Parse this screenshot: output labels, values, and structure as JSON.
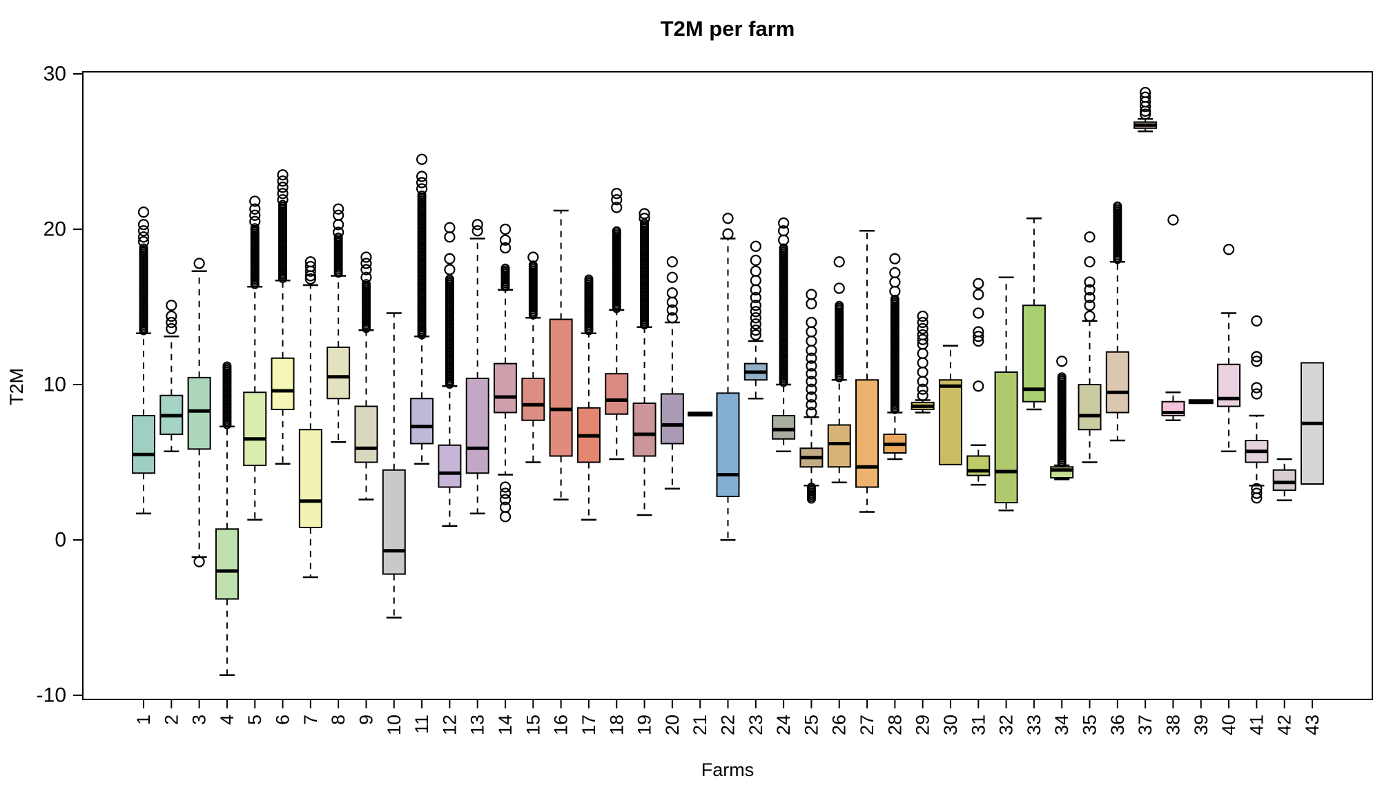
{
  "chart_data": {
    "type": "boxplot",
    "title": "T2M per farm",
    "xlabel": "Farms",
    "ylabel": "T2M",
    "ylim": [
      -10,
      30
    ],
    "y_ticks": [
      30,
      20,
      10,
      0,
      -10
    ],
    "grid": false,
    "legend": "none",
    "farms": [
      {
        "label": "1",
        "color": "#9FCFC3",
        "whisker_low": 1.7,
        "q1": 4.3,
        "median": 5.5,
        "q3": 8.0,
        "whisker_high": 13.3,
        "out_high_dense": [
          13.4,
          18.8
        ],
        "out_high": [
          19.2,
          19.5,
          19.9,
          20.3,
          21.1
        ],
        "out_low_dense": null,
        "out_low": []
      },
      {
        "label": "2",
        "color": "#A5D3C5",
        "whisker_low": 5.7,
        "q1": 6.8,
        "median": 8.0,
        "q3": 9.3,
        "whisker_high": 13.1,
        "out_high_dense": null,
        "out_high": [
          13.6,
          14.0,
          14.4,
          15.1
        ],
        "out_low_dense": null,
        "out_low": []
      },
      {
        "label": "3",
        "color": "#ACD6BC",
        "whisker_low": -1.1,
        "q1": 5.85,
        "median": 8.3,
        "q3": 10.45,
        "whisker_high": 17.3,
        "out_high_dense": null,
        "out_high": [
          17.8
        ],
        "out_low_dense": null,
        "out_low": [
          -1.4
        ]
      },
      {
        "label": "4",
        "color": "#C0E1AE",
        "whisker_low": -8.7,
        "q1": -3.8,
        "median": -2.0,
        "q3": 0.7,
        "whisker_high": 7.3,
        "out_high_dense": [
          7.4,
          11.2
        ],
        "out_high": [],
        "out_low_dense": null,
        "out_low": []
      },
      {
        "label": "5",
        "color": "#DAEDAF",
        "whisker_low": 1.3,
        "q1": 4.8,
        "median": 6.5,
        "q3": 9.5,
        "whisker_high": 16.3,
        "out_high_dense": [
          16.4,
          20.1
        ],
        "out_high": [
          20.5,
          20.9,
          21.3,
          21.8
        ],
        "out_low_dense": null,
        "out_low": []
      },
      {
        "label": "6",
        "color": "#F5F7B6",
        "whisker_low": 4.9,
        "q1": 8.4,
        "median": 9.6,
        "q3": 11.7,
        "whisker_high": 16.7,
        "out_high_dense": [
          16.8,
          21.6
        ],
        "out_high": [
          21.9,
          22.3,
          22.7,
          23.1,
          23.5
        ],
        "out_low_dense": null,
        "out_low": []
      },
      {
        "label": "7",
        "color": "#F1F2B3",
        "whisker_low": -2.4,
        "q1": 0.8,
        "median": 2.5,
        "q3": 7.1,
        "whisker_high": 16.4,
        "out_high_dense": null,
        "out_high": [
          16.8,
          17.0,
          17.3,
          17.6,
          17.9
        ],
        "out_low_dense": null,
        "out_low": []
      },
      {
        "label": "8",
        "color": "#E4E2BE",
        "whisker_low": 6.3,
        "q1": 9.1,
        "median": 10.5,
        "q3": 12.4,
        "whisker_high": 17.0,
        "out_high_dense": [
          17.1,
          19.5
        ],
        "out_high": [
          19.8,
          20.3,
          20.9,
          21.3
        ],
        "out_low_dense": null,
        "out_low": []
      },
      {
        "label": "9",
        "color": "#D9D8BE",
        "whisker_low": 2.6,
        "q1": 5.0,
        "median": 5.9,
        "q3": 8.6,
        "whisker_high": 13.5,
        "out_high_dense": [
          13.6,
          16.5
        ],
        "out_high": [
          16.9,
          17.4,
          17.8,
          18.2
        ],
        "out_low_dense": null,
        "out_low": []
      },
      {
        "label": "10",
        "color": "#C9C9C9",
        "whisker_low": -5.0,
        "q1": -2.2,
        "median": -0.7,
        "q3": 4.5,
        "whisker_high": 14.6,
        "out_high_dense": null,
        "out_high": [],
        "out_low_dense": null,
        "out_low": []
      },
      {
        "label": "11",
        "color": "#BDB9D6",
        "whisker_low": 4.9,
        "q1": 6.2,
        "median": 7.3,
        "q3": 9.1,
        "whisker_high": 13.1,
        "out_high_dense": [
          13.2,
          22.2
        ],
        "out_high": [
          22.6,
          23.0,
          23.4,
          24.5
        ],
        "out_low_dense": null,
        "out_low": []
      },
      {
        "label": "12",
        "color": "#C6B4D6",
        "whisker_low": 0.9,
        "q1": 3.4,
        "median": 4.3,
        "q3": 6.1,
        "whisker_high": 9.9,
        "out_high_dense": [
          10.0,
          16.8
        ],
        "out_high": [
          17.4,
          18.1,
          19.5,
          20.1
        ],
        "out_low_dense": null,
        "out_low": []
      },
      {
        "label": "13",
        "color": "#C3A8C5",
        "whisker_low": 1.7,
        "q1": 4.3,
        "median": 5.9,
        "q3": 10.4,
        "whisker_high": 19.4,
        "out_high_dense": null,
        "out_high": [
          19.9,
          20.3
        ],
        "out_low_dense": null,
        "out_low": []
      },
      {
        "label": "14",
        "color": "#CD9FAB",
        "whisker_low": 4.2,
        "q1": 8.2,
        "median": 9.2,
        "q3": 11.35,
        "whisker_high": 16.1,
        "out_high_dense": [
          16.2,
          17.5
        ],
        "out_high": [
          18.8,
          19.3,
          20.0
        ],
        "out_low_dense": null,
        "out_low": [
          1.5,
          2.1,
          2.6,
          3.0,
          3.4
        ]
      },
      {
        "label": "15",
        "color": "#DD8E83",
        "whisker_low": 5.0,
        "q1": 7.7,
        "median": 8.7,
        "q3": 10.4,
        "whisker_high": 14.3,
        "out_high_dense": [
          14.4,
          17.7
        ],
        "out_high": [
          18.2
        ],
        "out_low_dense": null,
        "out_low": []
      },
      {
        "label": "16",
        "color": "#E08B7B",
        "whisker_low": 2.6,
        "q1": 5.4,
        "median": 8.4,
        "q3": 14.2,
        "whisker_high": 21.2,
        "out_high_dense": null,
        "out_high": [],
        "out_low_dense": null,
        "out_low": []
      },
      {
        "label": "17",
        "color": "#E48570",
        "whisker_low": 1.3,
        "q1": 5.0,
        "median": 6.7,
        "q3": 8.5,
        "whisker_high": 13.3,
        "out_high_dense": [
          13.4,
          16.8
        ],
        "out_high": [],
        "out_low_dense": null,
        "out_low": []
      },
      {
        "label": "18",
        "color": "#D98B83",
        "whisker_low": 5.2,
        "q1": 8.1,
        "median": 9.0,
        "q3": 10.7,
        "whisker_high": 14.8,
        "out_high_dense": [
          14.9,
          19.9
        ],
        "out_high": [
          21.4,
          21.9,
          22.3
        ],
        "out_low_dense": null,
        "out_low": []
      },
      {
        "label": "19",
        "color": "#CB9599",
        "whisker_low": 1.6,
        "q1": 5.4,
        "median": 6.8,
        "q3": 8.8,
        "whisker_high": 13.7,
        "out_high_dense": [
          13.8,
          20.4
        ],
        "out_high": [
          20.7,
          21.0
        ],
        "out_low_dense": null,
        "out_low": []
      },
      {
        "label": "20",
        "color": "#A99BB3",
        "whisker_low": 3.3,
        "q1": 6.2,
        "median": 7.4,
        "q3": 9.4,
        "whisker_high": 14.0,
        "out_high_dense": null,
        "out_high": [
          14.3,
          14.8,
          15.3,
          15.9,
          16.9,
          17.9
        ],
        "out_low_dense": null,
        "out_low": []
      },
      {
        "label": "21",
        "color": "#C0C0C0",
        "whisker_low": 8.1,
        "q1": 8.1,
        "median": 8.1,
        "q3": 8.1,
        "whisker_high": 8.1,
        "out_high_dense": null,
        "out_high": [],
        "out_low_dense": null,
        "out_low": []
      },
      {
        "label": "22",
        "color": "#85AED3",
        "whisker_low": 0.0,
        "q1": 2.8,
        "median": 4.2,
        "q3": 9.45,
        "whisker_high": 19.4,
        "out_high_dense": null,
        "out_high": [
          19.7,
          20.7
        ],
        "out_low_dense": null,
        "out_low": []
      },
      {
        "label": "23",
        "color": "#92AFC5",
        "whisker_low": 9.1,
        "q1": 10.3,
        "median": 10.8,
        "q3": 11.35,
        "whisker_high": 12.8,
        "out_high_dense": null,
        "out_high": [
          13.2,
          13.5,
          13.9,
          14.3,
          14.7,
          15.1,
          15.6,
          16.1,
          16.7,
          17.3,
          18.0,
          18.9
        ],
        "out_low_dense": null,
        "out_low": []
      },
      {
        "label": "24",
        "color": "#A8AE9F",
        "whisker_low": 5.7,
        "q1": 6.5,
        "median": 7.1,
        "q3": 8.0,
        "whisker_high": 10.0,
        "out_high_dense": [
          10.1,
          18.8
        ],
        "out_high": [
          19.3,
          19.9,
          20.4
        ],
        "out_low_dense": null,
        "out_low": []
      },
      {
        "label": "25",
        "color": "#C3AB84",
        "whisker_low": 3.5,
        "q1": 4.7,
        "median": 5.3,
        "q3": 5.9,
        "whisker_high": 7.9,
        "out_high_dense": null,
        "out_high": [
          8.2,
          8.7,
          9.2,
          9.7,
          10.2,
          10.7,
          11.2,
          11.7,
          12.2,
          12.8,
          13.4,
          14.0,
          15.2,
          15.8
        ],
        "out_low_dense": [
          2.6,
          3.4
        ],
        "out_low": []
      },
      {
        "label": "26",
        "color": "#D8B377",
        "whisker_low": 3.7,
        "q1": 4.7,
        "median": 6.2,
        "q3": 7.4,
        "whisker_high": 10.3,
        "out_high_dense": [
          10.4,
          15.1
        ],
        "out_high": [
          16.2,
          17.9
        ],
        "out_low_dense": null,
        "out_low": []
      },
      {
        "label": "27",
        "color": "#EDB26E",
        "whisker_low": 1.8,
        "q1": 3.4,
        "median": 4.7,
        "q3": 10.3,
        "whisker_high": 19.9,
        "out_high_dense": null,
        "out_high": [],
        "out_low_dense": null,
        "out_low": []
      },
      {
        "label": "28",
        "color": "#E8A75C",
        "whisker_low": 5.2,
        "q1": 5.6,
        "median": 6.15,
        "q3": 6.8,
        "whisker_high": 8.2,
        "out_high_dense": [
          8.3,
          15.5
        ],
        "out_high": [
          16.0,
          16.6,
          17.2,
          18.1
        ],
        "out_low_dense": null,
        "out_low": []
      },
      {
        "label": "29",
        "color": "#CDBC5E",
        "whisker_low": 8.2,
        "q1": 8.4,
        "median": 8.6,
        "q3": 8.85,
        "whisker_high": 9.0,
        "out_high_dense": null,
        "out_high": [
          9.3,
          9.7,
          10.2,
          10.8,
          11.4,
          12.0,
          12.6,
          12.9,
          13.2,
          13.6,
          14.0,
          14.4
        ],
        "out_low_dense": null,
        "out_low": []
      },
      {
        "label": "30",
        "color": "#CBBD63",
        "whisker_low": 4.8,
        "q1": 4.85,
        "median": 9.9,
        "q3": 10.3,
        "whisker_high": 12.5,
        "out_high_dense": null,
        "out_high": [],
        "out_low_dense": null,
        "out_low": []
      },
      {
        "label": "31",
        "color": "#BFCB69",
        "whisker_low": 3.55,
        "q1": 4.15,
        "median": 4.45,
        "q3": 5.4,
        "whisker_high": 6.1,
        "out_high_dense": null,
        "out_high": [
          9.9,
          12.8,
          13.1,
          13.4,
          14.6,
          15.8,
          16.5
        ],
        "out_low_dense": null,
        "out_low": []
      },
      {
        "label": "32",
        "color": "#AFC96C",
        "whisker_low": 1.9,
        "q1": 2.4,
        "median": 4.4,
        "q3": 10.8,
        "whisker_high": 16.9,
        "out_high_dense": null,
        "out_high": [],
        "out_low_dense": null,
        "out_low": []
      },
      {
        "label": "33",
        "color": "#A9CF72",
        "whisker_low": 8.4,
        "q1": 8.9,
        "median": 9.7,
        "q3": 15.1,
        "whisker_high": 20.7,
        "out_high_dense": null,
        "out_high": [],
        "out_low_dense": null,
        "out_low": []
      },
      {
        "label": "34",
        "color": "#C6DF96",
        "whisker_low": 3.9,
        "q1": 4.0,
        "median": 4.5,
        "q3": 4.7,
        "whisker_high": 4.8,
        "out_high_dense": [
          4.9,
          10.5
        ],
        "out_high": [
          11.5
        ],
        "out_low_dense": null,
        "out_low": []
      },
      {
        "label": "35",
        "color": "#CACBA0",
        "whisker_low": 5.0,
        "q1": 7.1,
        "median": 8.0,
        "q3": 10.0,
        "whisker_high": 14.1,
        "out_high_dense": null,
        "out_high": [
          14.4,
          15.1,
          15.6,
          16.1,
          16.6,
          17.9,
          19.5
        ],
        "out_low_dense": null,
        "out_low": []
      },
      {
        "label": "36",
        "color": "#DBC7AF",
        "whisker_low": 6.4,
        "q1": 8.2,
        "median": 9.5,
        "q3": 12.1,
        "whisker_high": 17.9,
        "out_high_dense": [
          18.0,
          21.5
        ],
        "out_high": [],
        "out_low_dense": null,
        "out_low": []
      },
      {
        "label": "37",
        "color": "#C9A8A6",
        "whisker_low": 26.3,
        "q1": 26.5,
        "median": 26.7,
        "q3": 26.9,
        "whisker_high": 27.1,
        "out_high_dense": null,
        "out_high": [
          27.4,
          27.6,
          27.9,
          28.2,
          28.5,
          28.8
        ],
        "out_low_dense": null,
        "out_low": []
      },
      {
        "label": "38",
        "color": "#F5C3DC",
        "whisker_low": 7.7,
        "q1": 8.0,
        "median": 8.2,
        "q3": 8.9,
        "whisker_high": 9.5,
        "out_high_dense": null,
        "out_high": [
          20.6
        ],
        "out_low_dense": null,
        "out_low": []
      },
      {
        "label": "39",
        "color": "#C0C0C0",
        "whisker_low": 8.9,
        "q1": 8.9,
        "median": 8.9,
        "q3": 8.9,
        "whisker_high": 8.9,
        "out_high_dense": null,
        "out_high": [],
        "out_low_dense": null,
        "out_low": []
      },
      {
        "label": "40",
        "color": "#EBD2E1",
        "whisker_low": 5.7,
        "q1": 8.6,
        "median": 9.1,
        "q3": 11.3,
        "whisker_high": 14.6,
        "out_high_dense": null,
        "out_high": [
          18.7
        ],
        "out_low_dense": null,
        "out_low": []
      },
      {
        "label": "41",
        "color": "#E4D2DE",
        "whisker_low": 3.5,
        "q1": 5.0,
        "median": 5.7,
        "q3": 6.4,
        "whisker_high": 8.0,
        "out_high_dense": null,
        "out_high": [
          9.4,
          9.8,
          11.5,
          11.8,
          14.1
        ],
        "out_low_dense": null,
        "out_low": [
          2.7,
          3.0,
          3.3
        ]
      },
      {
        "label": "42",
        "color": "#D5CDD2",
        "whisker_low": 2.55,
        "q1": 3.2,
        "median": 3.7,
        "q3": 4.5,
        "whisker_high": 5.2,
        "out_high_dense": null,
        "out_high": [],
        "out_low_dense": null,
        "out_low": []
      },
      {
        "label": "43",
        "color": "#D6D6D6",
        "whisker_low": 3.6,
        "q1": 3.6,
        "median": 7.5,
        "q3": 11.4,
        "whisker_high": 11.4,
        "out_high_dense": null,
        "out_high": [],
        "out_low_dense": null,
        "out_low": []
      }
    ]
  }
}
